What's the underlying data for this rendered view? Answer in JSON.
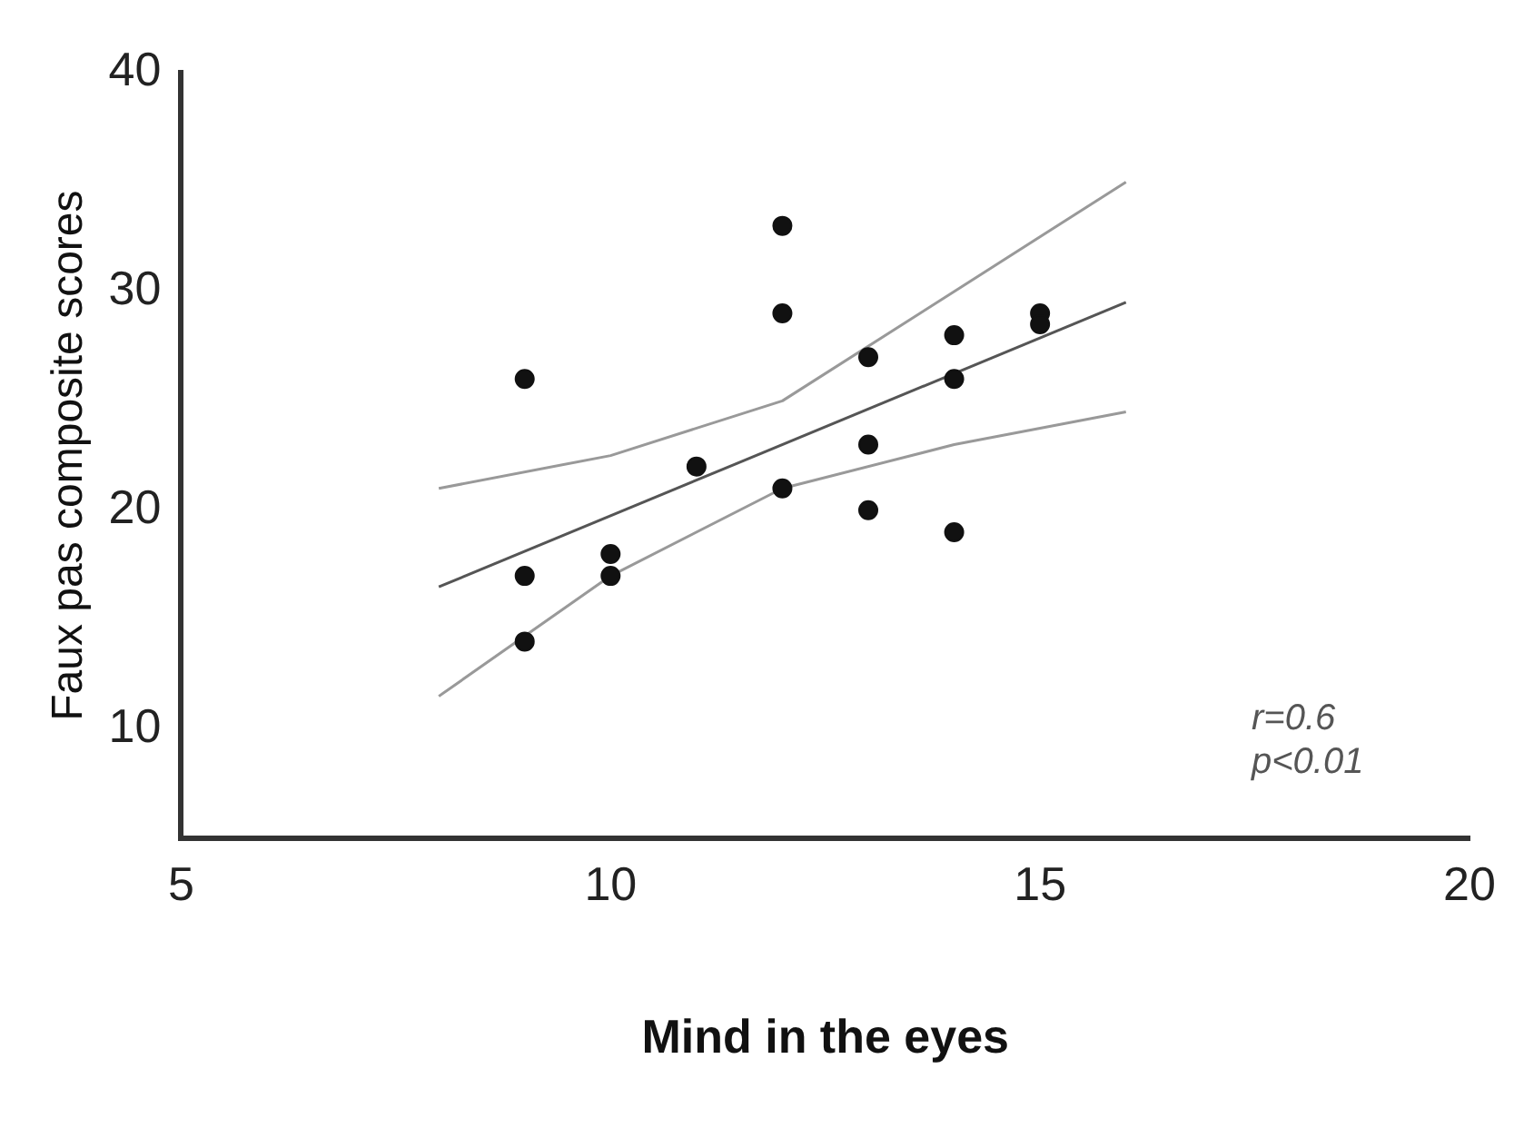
{
  "chart_data": {
    "type": "scatter",
    "xlabel": "Mind in the eyes",
    "ylabel": "Faux pas composite scores",
    "xlim": [
      5,
      20
    ],
    "xticks": [
      5,
      10,
      15,
      20
    ],
    "ylim": [
      5,
      40
    ],
    "yticks": [
      10,
      20,
      30,
      40
    ],
    "grid": false,
    "legend": false,
    "annotations": [
      "r=0.6",
      "p<0.01"
    ],
    "series": [
      {
        "marker": "circle",
        "color": "#111111",
        "x": [
          9,
          9,
          9,
          10,
          10,
          11,
          12,
          12,
          12,
          13,
          13,
          13,
          14,
          14,
          14,
          15,
          15
        ],
        "values": [
          26,
          17,
          14,
          18,
          17,
          22,
          33,
          29,
          21,
          27,
          23,
          20,
          28,
          26,
          19,
          29,
          28.5
        ]
      },
      {
        "type": "line",
        "marker": "none",
        "color": "#555555",
        "x": [
          8,
          16
        ],
        "values": [
          16.5,
          29.5
        ]
      },
      {
        "type": "line",
        "marker": "none",
        "color": "#999999",
        "x": [
          8,
          10,
          12,
          14,
          16
        ],
        "values": [
          21,
          22.5,
          25,
          30,
          35
        ]
      },
      {
        "type": "line",
        "marker": "none",
        "color": "#999999",
        "x": [
          8,
          10,
          12,
          14,
          16
        ],
        "values": [
          11.5,
          17,
          21,
          23,
          24.5
        ]
      }
    ]
  }
}
